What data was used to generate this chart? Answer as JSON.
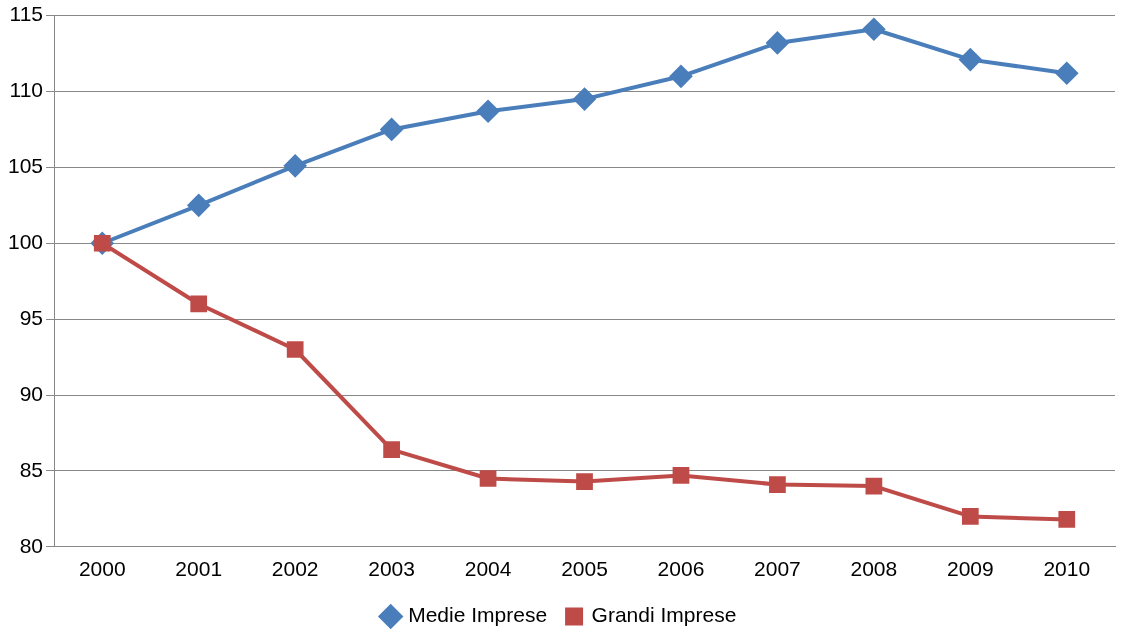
{
  "chart_data": {
    "type": "line",
    "categories": [
      "2000",
      "2001",
      "2002",
      "2003",
      "2004",
      "2005",
      "2006",
      "2007",
      "2008",
      "2009",
      "2010"
    ],
    "series": [
      {
        "name": "Medie Imprese",
        "color": "#4a7ebb",
        "marker": "diamond",
        "values": [
          100,
          102.5,
          105.1,
          107.5,
          108.7,
          109.5,
          111.0,
          113.2,
          114.1,
          112.1,
          111.2
        ]
      },
      {
        "name": "Grandi Imprese",
        "color": "#be4b48",
        "marker": "square",
        "values": [
          100,
          96.0,
          93.0,
          86.4,
          84.5,
          84.3,
          84.7,
          84.1,
          84.0,
          82.0,
          81.8
        ]
      }
    ],
    "ylim": [
      80,
      115
    ],
    "yticks": [
      80,
      85,
      90,
      95,
      100,
      105,
      110,
      115
    ],
    "grid": "y",
    "legend": "bottom",
    "line_style": "solid"
  }
}
